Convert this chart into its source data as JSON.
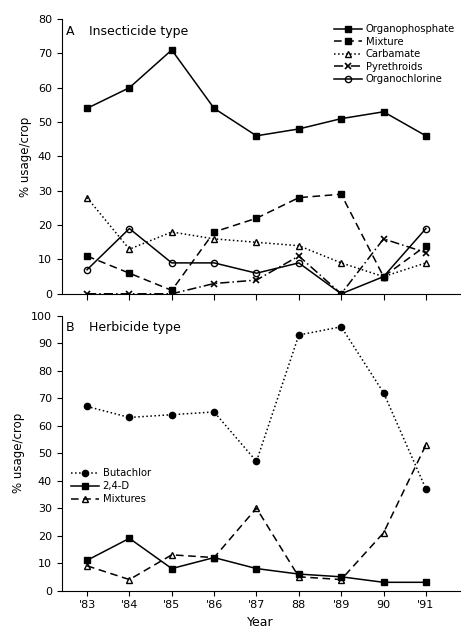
{
  "years": [
    1983,
    1984,
    1985,
    1986,
    1987,
    1988,
    1989,
    1990,
    1991
  ],
  "year_labels": [
    "'83",
    "'84",
    "'85",
    "'86",
    "'87",
    "88",
    "'89",
    "90",
    "'91"
  ],
  "insecticide_data": {
    "Organophosphate": [
      54,
      60,
      71,
      54,
      46,
      48,
      51,
      53,
      46
    ],
    "Mixture": [
      11,
      6,
      1,
      18,
      22,
      28,
      29,
      5,
      14
    ],
    "Carbamate": [
      28,
      13,
      18,
      16,
      15,
      14,
      9,
      5,
      9
    ],
    "Pyrethroids": [
      0,
      0,
      0,
      3,
      4,
      11,
      0,
      16,
      12
    ],
    "Organochlorine": [
      7,
      19,
      9,
      9,
      6,
      9,
      0,
      5,
      19
    ]
  },
  "herbicide_data": {
    "Butachlor": [
      67,
      63,
      64,
      65,
      47,
      93,
      96,
      72,
      37
    ],
    "2,4-D": [
      11,
      19,
      8,
      12,
      8,
      6,
      5,
      3,
      3
    ],
    "Mixtures": [
      9,
      4,
      13,
      12,
      30,
      5,
      4,
      21,
      53
    ]
  },
  "panel_A_label": "A",
  "panel_A_title": "Insecticide type",
  "panel_B_label": "B",
  "panel_B_title": "Herbicide type",
  "ylabel": "% usage/crop",
  "xlabel": "Year",
  "insecticide_ylim": [
    0,
    80
  ],
  "herbicide_ylim": [
    0,
    100
  ],
  "insecticide_yticks": [
    0,
    10,
    20,
    30,
    40,
    50,
    60,
    70,
    80
  ],
  "herbicide_yticks": [
    0,
    10,
    20,
    30,
    40,
    50,
    60,
    70,
    80,
    90,
    100
  ]
}
